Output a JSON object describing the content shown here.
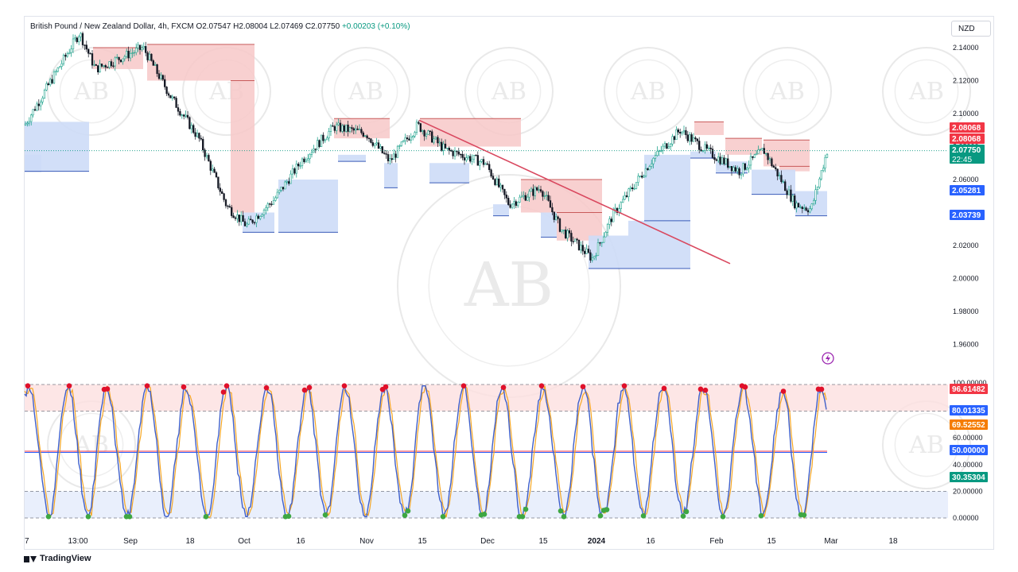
{
  "header": {
    "symbol": "British Pound / New Zealand Dollar, 4h, FXCM",
    "open": "O2.07547",
    "high": "H2.08004",
    "low": "L2.07469",
    "close": "C2.07750",
    "change": "+0.00203 (+0.10%)",
    "currency": "NZD"
  },
  "footer": {
    "brand": "TradingView"
  },
  "colors": {
    "supply": "#f7c8c8",
    "demand": "#cddcf7",
    "trendline": "#d9485f",
    "stoch_k": "#3f5fc9",
    "stoch_d": "#f5a623",
    "last_price": "#089981",
    "marker_high": "#e0102a",
    "marker_low": "#3ea742"
  },
  "chart_data": [
    {
      "type": "candlestick",
      "title": "",
      "ylim": [
        1.94,
        2.155
      ],
      "y_ticks": [
        "2.14000",
        "2.12000",
        "2.10000",
        "2.08000",
        "2.06000",
        "2.04000",
        "2.02000",
        "2.00000",
        "1.98000",
        "1.96000"
      ],
      "x_ticks": [
        "7",
        "13:00",
        "Sep",
        "18",
        "Oct",
        "16",
        "Nov",
        "15",
        "Dec",
        "15",
        "2024",
        "16",
        "Feb",
        "15",
        "Mar",
        "18"
      ],
      "price_tags": [
        {
          "label": "2.08068",
          "value": 2.0807,
          "style": "red"
        },
        {
          "label": "2.08068",
          "value": 2.0807,
          "style": "red"
        },
        {
          "label": "2.07750",
          "value": 2.0775,
          "style": "green",
          "countdown": "22:45"
        },
        {
          "label": "2.05281",
          "value": 2.0528,
          "style": "blue"
        },
        {
          "label": "2.03739",
          "value": 2.0374,
          "style": "blue"
        }
      ],
      "series": [
        {
          "name": "",
          "points": [
            [
              "7",
              2.093
            ],
            [
              "13:00",
              2.149
            ],
            [
              "Sep",
              2.127
            ],
            [
              "Sep",
              2.14
            ],
            [
              "18",
              2.11
            ],
            [
              "18",
              2.085
            ],
            [
              "Oct",
              2.044
            ],
            [
              "Oct",
              2.032
            ],
            [
              "16",
              2.048
            ],
            [
              "16",
              2.072
            ],
            [
              "16",
              2.092
            ],
            [
              "Nov",
              2.088
            ],
            [
              "Nov",
              2.071
            ],
            [
              "15",
              2.093
            ],
            [
              "15",
              2.078
            ],
            [
              "Dec",
              2.07
            ],
            [
              "Dec",
              2.045
            ],
            [
              "15",
              2.055
            ],
            [
              "15",
              2.03
            ],
            [
              "2024",
              2.012
            ],
            [
              "2024",
              2.038
            ],
            [
              "16",
              2.072
            ],
            [
              "16",
              2.09
            ],
            [
              "Feb",
              2.077
            ],
            [
              "Feb",
              2.065
            ],
            [
              "15",
              2.078
            ],
            [
              "15",
              2.045
            ],
            [
              "15",
              2.042
            ],
            [
              "Mar",
              2.0775
            ]
          ]
        }
      ]
    },
    {
      "type": "line",
      "title": "",
      "ylim": [
        0,
        100
      ],
      "y_ticks": [
        "20.00000",
        "40.00000",
        "60.00000",
        "0.00000"
      ],
      "y_tick_values": [
        20,
        40,
        60,
        0
      ],
      "value_tags": [
        {
          "label": "100.00000",
          "value": 100,
          "style": "plain"
        },
        {
          "label": "96.61482",
          "value": 96.6,
          "style": "red"
        },
        {
          "label": "80.01335",
          "value": 80.0,
          "style": "blue"
        },
        {
          "label": "69.52552",
          "value": 69.5,
          "style": "orange"
        },
        {
          "label": "50.00000",
          "value": 50,
          "style": "blue"
        },
        {
          "label": "30.35304",
          "value": 30.4,
          "style": "green"
        }
      ],
      "bands": {
        "upper": [
          80,
          100
        ],
        "lower": [
          0,
          20
        ],
        "mid": 50
      }
    }
  ]
}
